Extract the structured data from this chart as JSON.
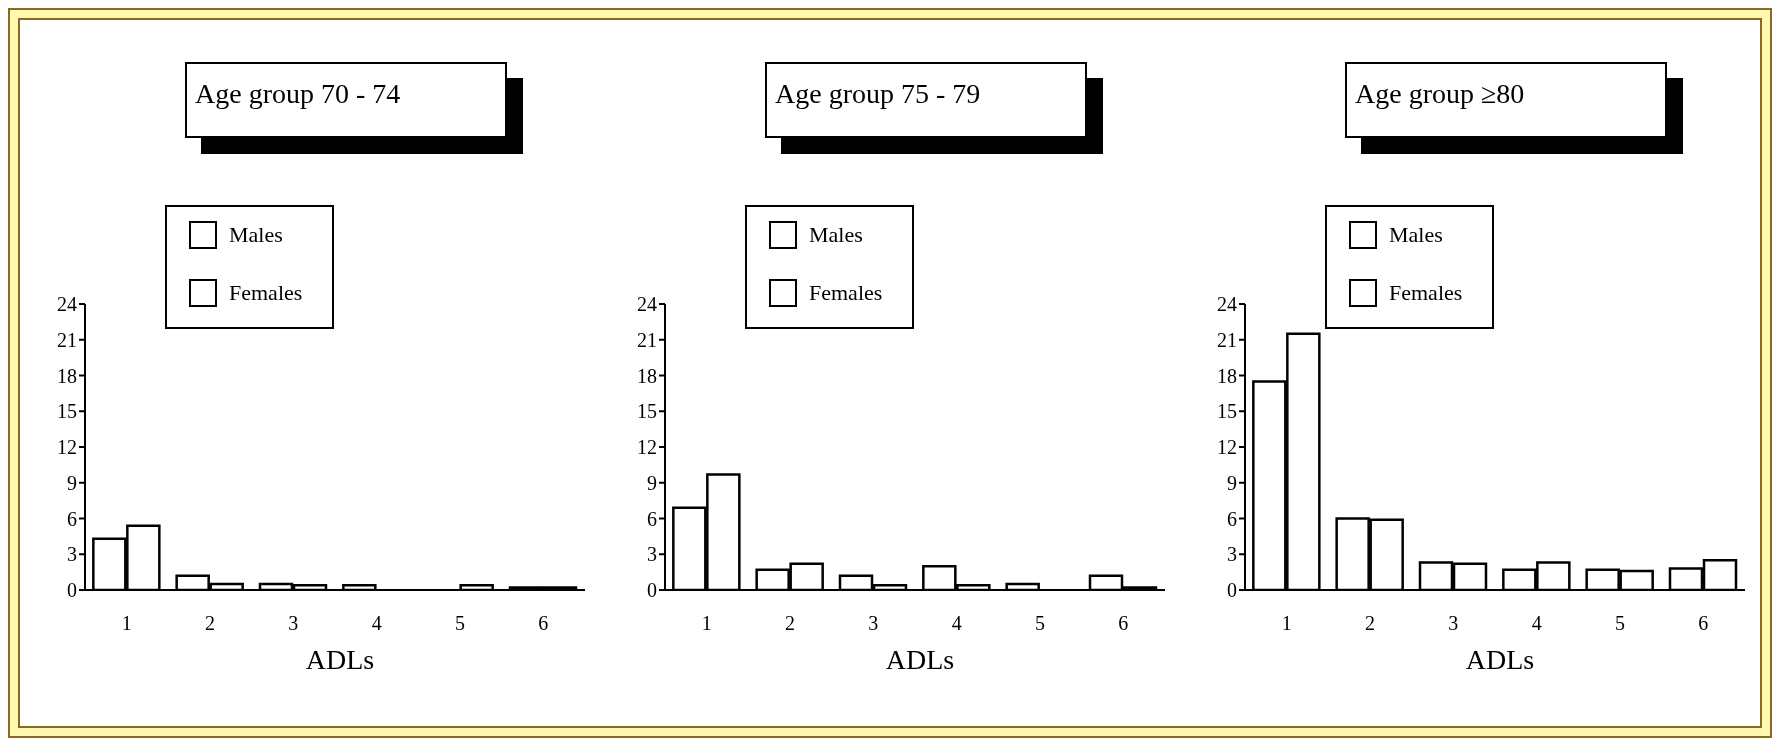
{
  "chart_data": [
    {
      "type": "bar",
      "title": "Age group  70 - 74",
      "xlabel": "ADLs",
      "categories": [
        "1",
        "2",
        "3",
        "4",
        "5",
        "6"
      ],
      "ylim": [
        0,
        24
      ],
      "yticks": [
        0,
        3,
        6,
        9,
        12,
        15,
        18,
        21,
        24
      ],
      "grid": false,
      "legend": "top",
      "series": [
        {
          "name": "Males",
          "color": "#ffffff",
          "values": [
            4.3,
            1.2,
            0.5,
            0.4,
            null,
            0.2
          ]
        },
        {
          "name": "Females",
          "color": "#ffffff",
          "values": [
            5.4,
            0.5,
            0.4,
            null,
            0.4,
            0.2
          ]
        }
      ]
    },
    {
      "type": "bar",
      "title": "Age group  75 - 79",
      "xlabel": "ADLs",
      "categories": [
        "1",
        "2",
        "3",
        "4",
        "5",
        "6"
      ],
      "ylim": [
        0,
        24
      ],
      "yticks": [
        0,
        3,
        6,
        9,
        12,
        15,
        18,
        21,
        24
      ],
      "grid": false,
      "legend": "top",
      "series": [
        {
          "name": "Males",
          "color": "#ffffff",
          "values": [
            6.9,
            1.7,
            1.2,
            2.0,
            0.5,
            1.2
          ]
        },
        {
          "name": "Females",
          "color": "#ffffff",
          "values": [
            9.7,
            2.2,
            0.4,
            0.4,
            null,
            0.2
          ]
        }
      ]
    },
    {
      "type": "bar",
      "title": "Age group  ≥80",
      "xlabel": "ADLs",
      "categories": [
        "1",
        "2",
        "3",
        "4",
        "5",
        "6"
      ],
      "ylim": [
        0,
        24
      ],
      "yticks": [
        0,
        3,
        6,
        9,
        12,
        15,
        18,
        21,
        24
      ],
      "grid": false,
      "legend": "top",
      "series": [
        {
          "name": "Males",
          "color": "#ffffff",
          "values": [
            17.5,
            6.0,
            2.3,
            1.7,
            1.7,
            1.8
          ]
        },
        {
          "name": "Females",
          "color": "#ffffff",
          "values": [
            21.5,
            5.9,
            2.2,
            2.3,
            1.6,
            2.5
          ]
        }
      ]
    }
  ]
}
